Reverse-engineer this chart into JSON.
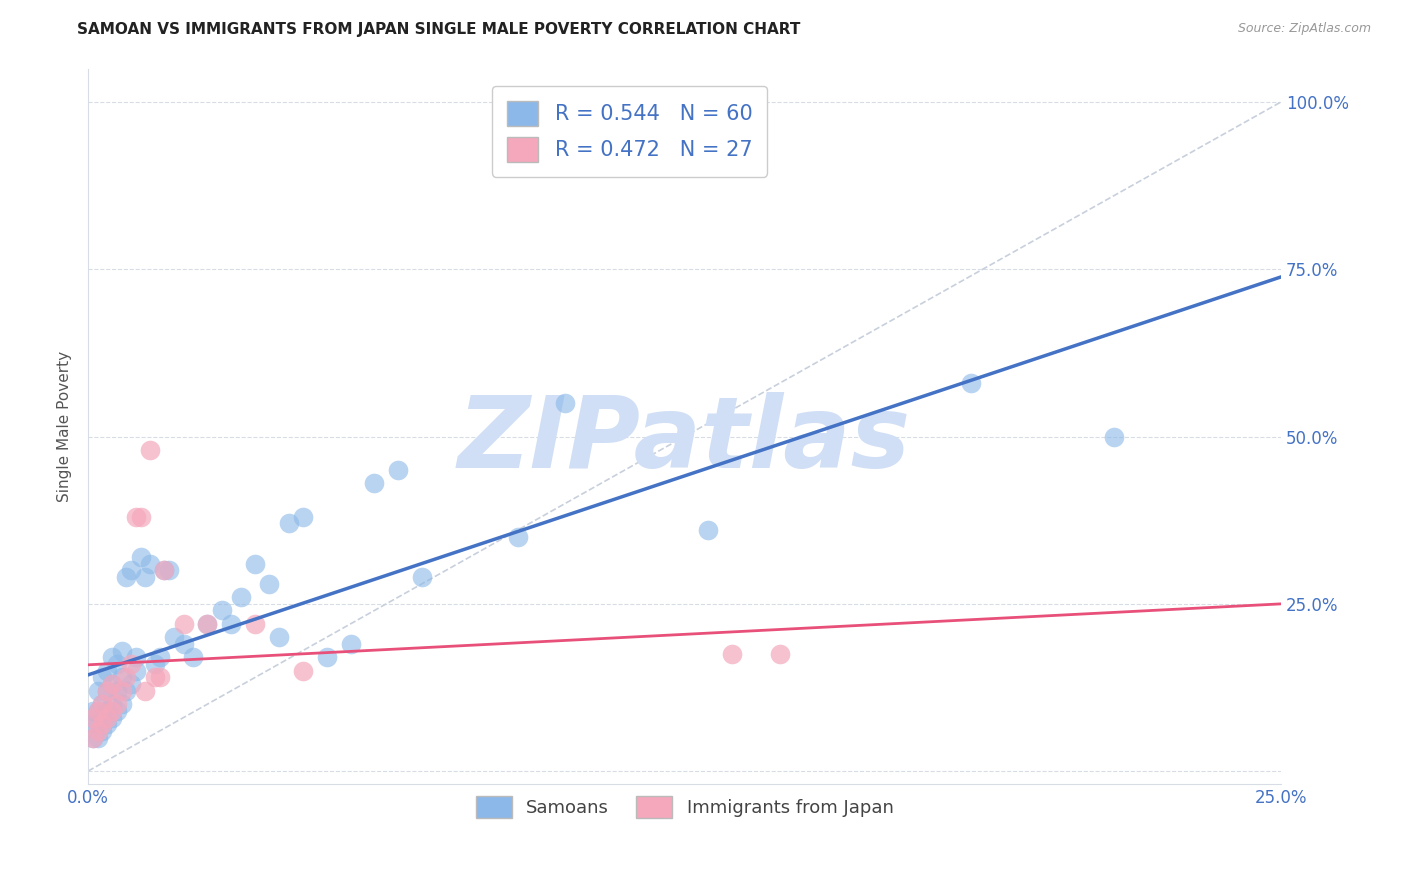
{
  "title": "SAMOAN VS IMMIGRANTS FROM JAPAN SINGLE MALE POVERTY CORRELATION CHART",
  "source": "Source: ZipAtlas.com",
  "ylabel": "Single Male Poverty",
  "xlim": [
    0.0,
    0.25
  ],
  "ylim": [
    -0.02,
    1.05
  ],
  "ytick_positions": [
    0.0,
    0.25,
    0.5,
    0.75,
    1.0
  ],
  "ytick_labels": [
    "",
    "25.0%",
    "50.0%",
    "75.0%",
    "100.0%"
  ],
  "xtick_positions": [
    0.0,
    0.05,
    0.1,
    0.15,
    0.2,
    0.25
  ],
  "xtick_labels": [
    "0.0%",
    "",
    "",
    "",
    "",
    "25.0%"
  ],
  "samoan_color": "#8BB8E8",
  "japan_color": "#F5A8BC",
  "samoan_edge": "#6A9FD8",
  "japan_edge": "#E890A8",
  "legend_text_color": "#4472C4",
  "samoan_R": 0.544,
  "samoan_N": 60,
  "japan_R": 0.472,
  "japan_N": 27,
  "watermark_text": "ZIPatlas",
  "watermark_color": "#D0DFF5",
  "diagonal_color": "#C8D0DC",
  "blue_line_color": "#4472C4",
  "pink_line_color": "#E8507A",
  "grid_color": "#D8DCE4",
  "title_color": "#222222",
  "source_color": "#999999",
  "ylabel_color": "#555555",
  "samoan_x": [
    0.001,
    0.001,
    0.001,
    0.002,
    0.002,
    0.002,
    0.002,
    0.003,
    0.003,
    0.003,
    0.003,
    0.004,
    0.004,
    0.004,
    0.004,
    0.005,
    0.005,
    0.005,
    0.005,
    0.006,
    0.006,
    0.006,
    0.007,
    0.007,
    0.007,
    0.008,
    0.008,
    0.009,
    0.009,
    0.01,
    0.01,
    0.011,
    0.012,
    0.013,
    0.014,
    0.015,
    0.016,
    0.017,
    0.018,
    0.02,
    0.022,
    0.025,
    0.028,
    0.03,
    0.032,
    0.035,
    0.038,
    0.04,
    0.042,
    0.045,
    0.05,
    0.055,
    0.06,
    0.065,
    0.07,
    0.09,
    0.1,
    0.13,
    0.185,
    0.215
  ],
  "samoan_y": [
    0.05,
    0.07,
    0.09,
    0.05,
    0.07,
    0.09,
    0.12,
    0.06,
    0.08,
    0.1,
    0.14,
    0.07,
    0.09,
    0.12,
    0.15,
    0.08,
    0.1,
    0.13,
    0.17,
    0.09,
    0.12,
    0.16,
    0.1,
    0.14,
    0.18,
    0.12,
    0.29,
    0.13,
    0.3,
    0.15,
    0.17,
    0.32,
    0.29,
    0.31,
    0.16,
    0.17,
    0.3,
    0.3,
    0.2,
    0.19,
    0.17,
    0.22,
    0.24,
    0.22,
    0.26,
    0.31,
    0.28,
    0.2,
    0.37,
    0.38,
    0.17,
    0.19,
    0.43,
    0.45,
    0.29,
    0.35,
    0.55,
    0.36,
    0.58,
    0.5
  ],
  "japan_x": [
    0.001,
    0.001,
    0.002,
    0.002,
    0.003,
    0.003,
    0.004,
    0.004,
    0.005,
    0.005,
    0.006,
    0.007,
    0.008,
    0.009,
    0.01,
    0.011,
    0.012,
    0.013,
    0.014,
    0.015,
    0.016,
    0.02,
    0.025,
    0.035,
    0.045,
    0.135,
    0.145
  ],
  "japan_y": [
    0.05,
    0.08,
    0.06,
    0.09,
    0.07,
    0.1,
    0.08,
    0.12,
    0.09,
    0.13,
    0.1,
    0.12,
    0.14,
    0.16,
    0.38,
    0.38,
    0.12,
    0.48,
    0.14,
    0.14,
    0.3,
    0.22,
    0.22,
    0.22,
    0.15,
    0.175,
    0.175
  ]
}
